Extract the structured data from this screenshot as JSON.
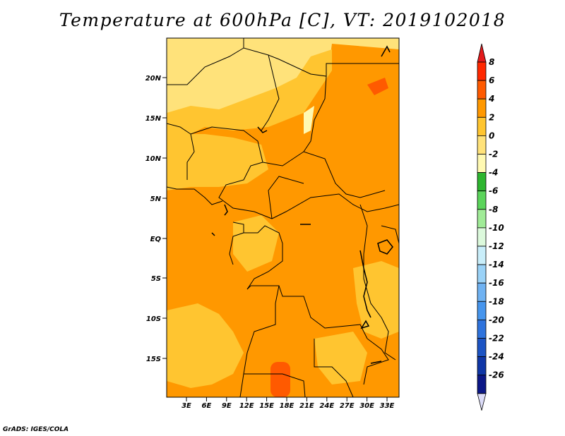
{
  "title": "Temperature at 600hPa [C], VT: 2019102018",
  "credit": "GrADS: IGES/COLA",
  "map": {
    "lat_labels": [
      "20N",
      "15N",
      "10N",
      "5N",
      "EQ",
      "5S",
      "10S",
      "15S"
    ],
    "lon_labels": [
      "3E",
      "6E",
      "9E",
      "12E",
      "15E",
      "18E",
      "21E",
      "24E",
      "27E",
      "30E",
      "33E"
    ],
    "region": "Central Africa"
  },
  "colorbar": {
    "labels": [
      "8",
      "6",
      "4",
      "2",
      "0",
      "-2",
      "-4",
      "-6",
      "-8",
      "-10",
      "-12",
      "-14",
      "-16",
      "-18",
      "-20",
      "-22",
      "-24",
      "-26"
    ],
    "colors": [
      "#ff2800",
      "#ff5a00",
      "#ff9800",
      "#ffc530",
      "#ffe27a",
      "#fff9b2",
      "#2db52f",
      "#5bd45b",
      "#a0eb97",
      "#dcf9dc",
      "#c9eefa",
      "#9ad2f7",
      "#6fb2f2",
      "#4695ed",
      "#2e73dd",
      "#1c54c4",
      "#0f36a6",
      "#0b1787"
    ],
    "top_color": "#e31a1c",
    "bottom_color": "#dcdcf8"
  }
}
